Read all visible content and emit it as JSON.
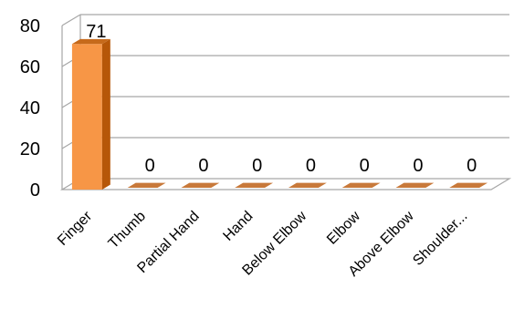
{
  "chart_data": {
    "type": "bar",
    "categories": [
      "Finger",
      "Thumb",
      "Partial Hand",
      "Hand",
      "Below Elbow",
      "Elbow",
      "Above Elbow",
      "Shoulder..."
    ],
    "values": [
      71,
      0,
      0,
      0,
      0,
      0,
      0,
      0
    ],
    "data_labels": [
      "71",
      "0",
      "0",
      "0",
      "0",
      "0",
      "0",
      "0"
    ],
    "title": "",
    "xlabel": "",
    "ylabel": "",
    "ylim": [
      0,
      80
    ],
    "y_ticks": [
      "0",
      "20",
      "40",
      "60",
      "80"
    ],
    "grid": true,
    "three_d": true,
    "colors": {
      "bar_front": "#F79646",
      "bar_side": "#B65708",
      "bar_top": "#C66A1B",
      "zero_bar": "#C8793A",
      "grid": "#A6A6A6"
    }
  }
}
